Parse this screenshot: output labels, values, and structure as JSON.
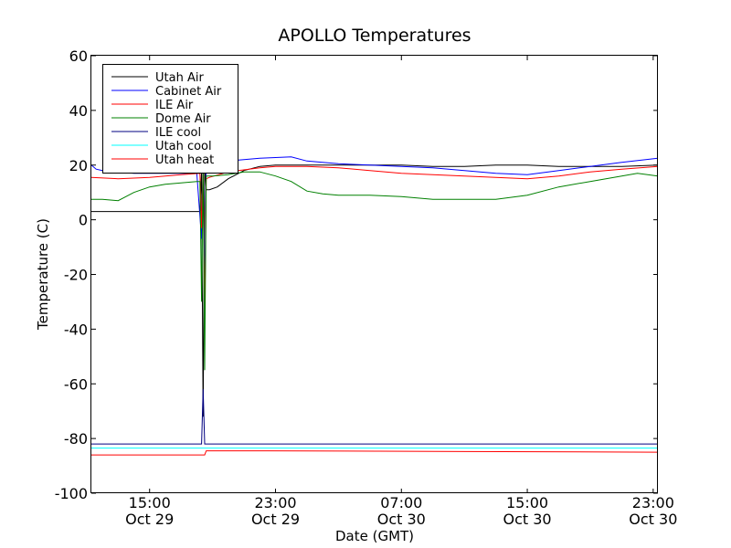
{
  "chart_data": {
    "type": "line",
    "title": "APOLLO Temperatures",
    "xlabel": "Date (GMT)",
    "ylabel": "Temperature (C)",
    "x_unit": "hours, 2015-10-29 00:00 GMT = 0",
    "xlim": [
      11.3,
      47.3
    ],
    "ylim": [
      -100,
      60
    ],
    "y_ticks": [
      -100,
      -80,
      -60,
      -40,
      -20,
      0,
      20,
      40,
      60
    ],
    "y_tick_labels": [
      "-100",
      "-80",
      "-60",
      "-40",
      "-20",
      "0",
      "20",
      "40",
      "60"
    ],
    "x_ticks": [
      15,
      23,
      31,
      39,
      47
    ],
    "x_tick_labels": [
      [
        "15:00",
        "Oct 29"
      ],
      [
        "23:00",
        "Oct 29"
      ],
      [
        "07:00",
        "Oct 30"
      ],
      [
        "15:00",
        "Oct 30"
      ],
      [
        "23:00",
        "Oct 30"
      ]
    ],
    "grid": false,
    "legend_position": "top-left",
    "series": [
      {
        "name": "Utah Air",
        "color": "#000000",
        "x": [
          11.3,
          15,
          18.2,
          18.3,
          18.4,
          18.5,
          18.6,
          18.8,
          19.3,
          20,
          21,
          22,
          23,
          25,
          27,
          29,
          31,
          33,
          35,
          37,
          39,
          41,
          43,
          45,
          47.3
        ],
        "y": [
          3,
          3,
          3,
          18,
          -72,
          19,
          11,
          11,
          12,
          15,
          18,
          19.5,
          20,
          20,
          20,
          20,
          20,
          19.5,
          19.5,
          20,
          20,
          19.5,
          19.5,
          19.5,
          20
        ]
      },
      {
        "name": "Cabinet Air",
        "color": "#0000ff",
        "x": [
          11.3,
          11.6,
          12,
          14,
          16,
          18,
          18.3,
          18.4,
          18.5,
          18.6,
          18.8,
          20,
          22,
          24,
          25,
          27,
          29,
          31,
          33,
          35,
          37,
          39,
          41,
          43,
          45,
          47.3
        ],
        "y": [
          20,
          18.5,
          18,
          17,
          17,
          17,
          -7,
          19,
          -26,
          19,
          21,
          21.5,
          22.5,
          23,
          21.5,
          20.5,
          20,
          19.5,
          19,
          18,
          17,
          16.5,
          18,
          19.5,
          21,
          22.5
        ]
      },
      {
        "name": "ILE Air",
        "color": "#ff0000",
        "x": [
          11.3,
          13,
          15,
          17,
          18.2,
          18.3,
          18.4,
          18.5,
          18.6,
          18.8,
          20,
          22,
          23,
          25,
          27,
          29,
          31,
          33,
          35,
          37,
          39,
          41,
          43,
          45,
          47.3
        ],
        "y": [
          15.5,
          15,
          15.5,
          16.5,
          17,
          -3,
          18,
          -38,
          15,
          15.5,
          17.5,
          19,
          19.5,
          19.5,
          19,
          18,
          17,
          16.5,
          16,
          15.5,
          15,
          16,
          17.5,
          18.5,
          19.5
        ]
      },
      {
        "name": "Dome Air",
        "color": "#008000",
        "x": [
          11.3,
          12,
          13,
          14,
          15,
          16,
          17,
          18,
          18.2,
          18.3,
          18.4,
          18.5,
          18.6,
          19,
          20,
          21,
          22,
          23,
          24,
          25,
          26,
          27,
          29,
          31,
          33,
          35,
          37,
          39,
          41,
          43,
          45,
          46,
          47.3
        ],
        "y": [
          7.5,
          7.5,
          7,
          10,
          12,
          13,
          13.5,
          14,
          14,
          -30,
          20,
          -55,
          16,
          16,
          16.5,
          17.5,
          17.5,
          16,
          14,
          10.5,
          9.5,
          9,
          9,
          8.5,
          7.5,
          7.5,
          7.5,
          9,
          12,
          14,
          16,
          17,
          16
        ]
      },
      {
        "name": "ILE cool",
        "color": "#000080",
        "x": [
          11.3,
          18.3,
          18.4,
          18.5,
          18.6,
          19,
          47.3
        ],
        "y": [
          -82,
          -82,
          -62,
          -82,
          -82,
          -82,
          -82
        ]
      },
      {
        "name": "Utah cool",
        "color": "#00ffff",
        "x": [
          11.3,
          47.3
        ],
        "y": [
          -83.5,
          -83.5
        ]
      },
      {
        "name": "Utah heat",
        "color": "#ff0000",
        "x": [
          11.3,
          18.5,
          18.6,
          22.5,
          47.3
        ],
        "y": [
          -86,
          -86,
          -84.5,
          -84.5,
          -85
        ]
      }
    ]
  }
}
